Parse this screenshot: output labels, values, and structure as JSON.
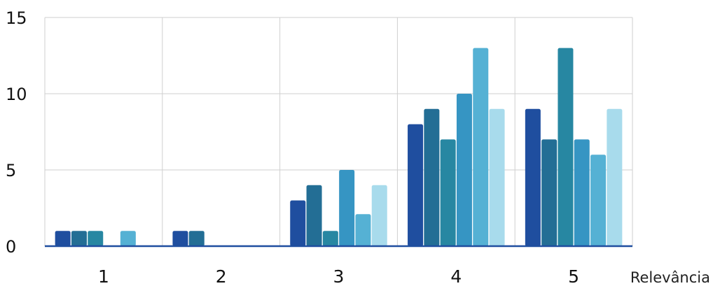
{
  "chart_data": {
    "type": "bar",
    "xlabel": "Relevância",
    "ylabel": "",
    "ylim": [
      0,
      15
    ],
    "yticks": [
      "0",
      "5",
      "10",
      "15"
    ],
    "grid": true,
    "legend": "none",
    "categories": [
      "1",
      "2",
      "3",
      "4",
      "5"
    ],
    "series": [
      {
        "values": [
          1,
          1,
          3,
          8,
          9
        ],
        "color": "#1f4e9f"
      },
      {
        "values": [
          1,
          1,
          4,
          9,
          7
        ],
        "color": "#236e95"
      },
      {
        "values": [
          1,
          0,
          1,
          7,
          13
        ],
        "color": "#2787a2"
      },
      {
        "values": [
          0,
          0,
          5,
          10,
          7
        ],
        "color": "#3695c3"
      },
      {
        "values": [
          1,
          0,
          2.1,
          13,
          6
        ],
        "color": "#55b1d4"
      },
      {
        "values": [
          0,
          0,
          4,
          9,
          9
        ],
        "color": "#a8dbec"
      }
    ],
    "axis_color": "#1f4e9f",
    "grid_color": "#cfcfcf"
  }
}
